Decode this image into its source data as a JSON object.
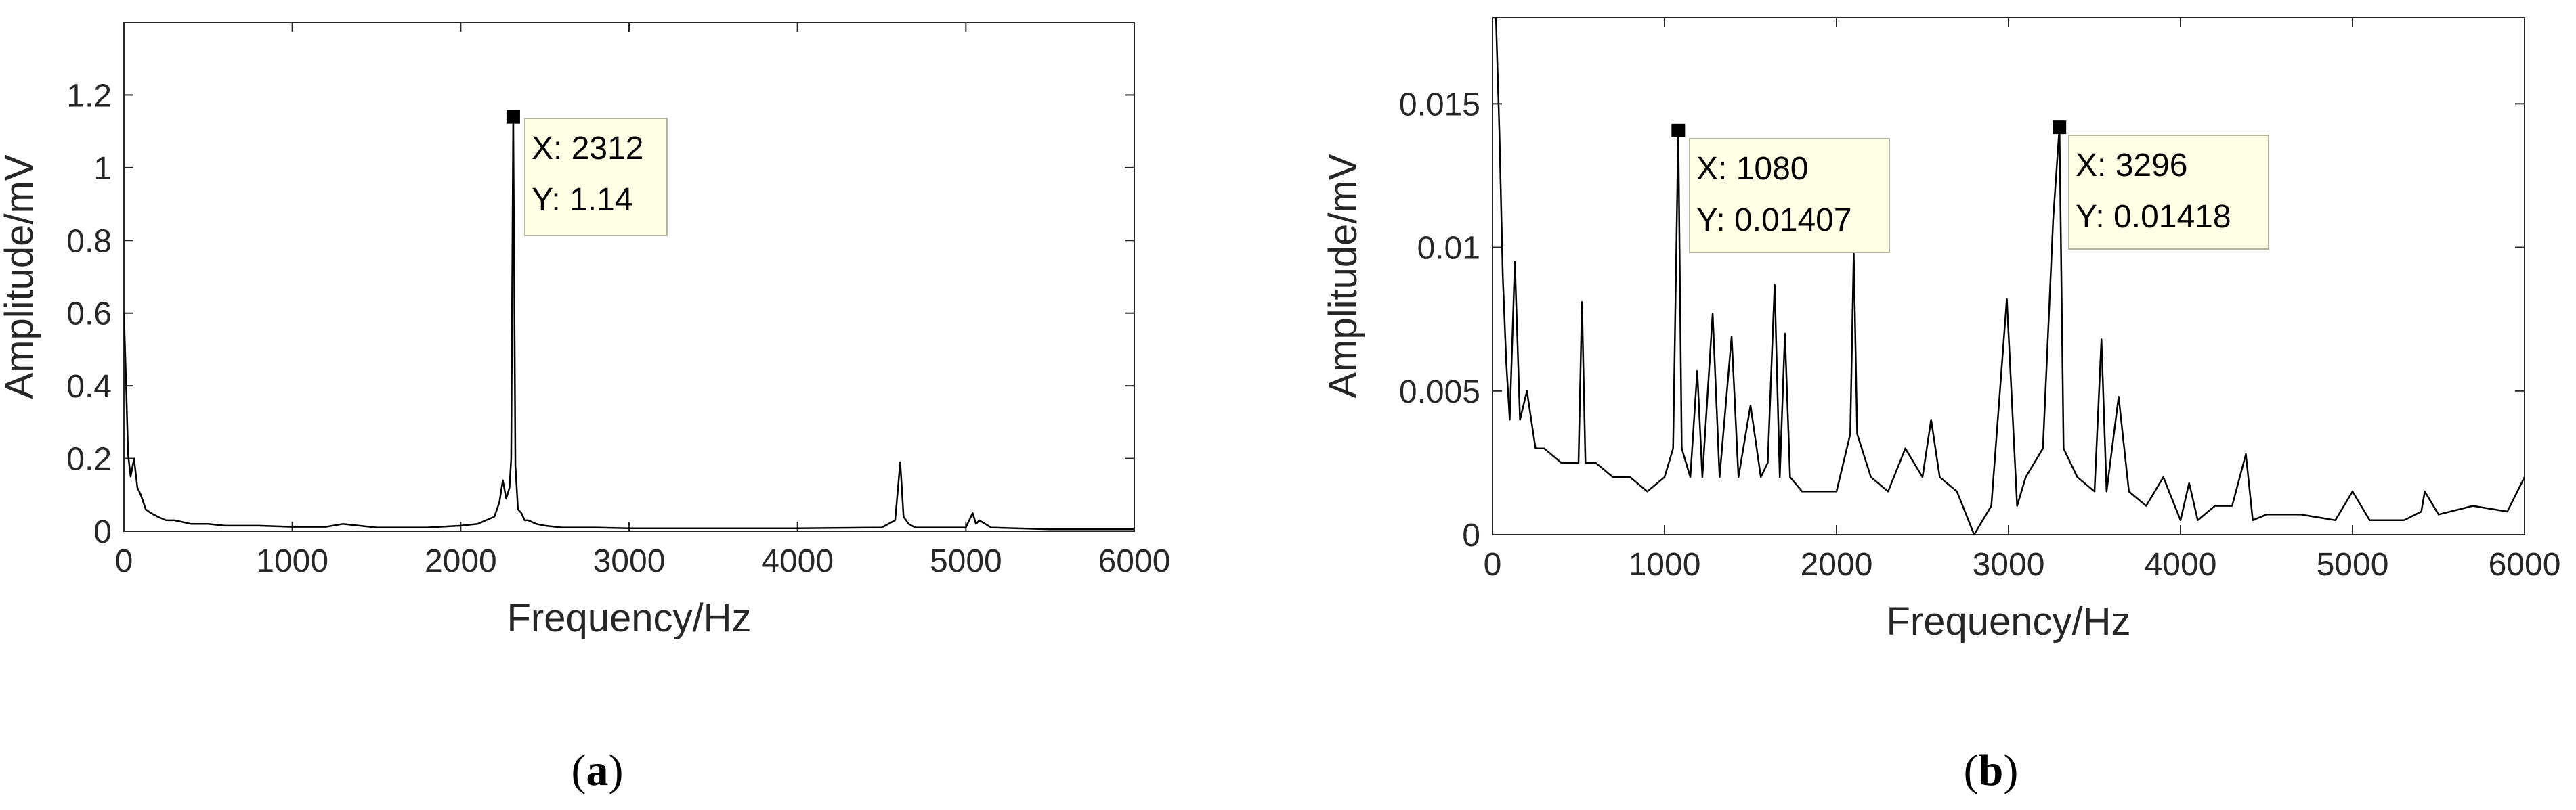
{
  "chart_data": [
    {
      "type": "line",
      "panel_label": "a",
      "xlabel": "Frequency/Hz",
      "ylabel": "Amplitude/mV",
      "xlim": [
        0,
        6000
      ],
      "ylim": [
        0,
        1.4
      ],
      "xticks": [
        0,
        1000,
        2000,
        3000,
        4000,
        5000,
        6000
      ],
      "yticks": [
        0,
        0.2,
        0.4,
        0.6,
        0.8,
        1,
        1.2
      ],
      "ytick_labels": [
        "0",
        "0.2",
        "0.4",
        "0.6",
        "0.8",
        "1",
        "1.2"
      ],
      "grid": false,
      "series": [
        {
          "x": [
            0,
            10,
            25,
            40,
            60,
            80,
            100,
            130,
            160,
            200,
            250,
            300,
            400,
            500,
            600,
            800,
            1000,
            1200,
            1300,
            1500,
            1800,
            2000,
            2100,
            2150,
            2200,
            2230,
            2250,
            2270,
            2290,
            2300,
            2312,
            2325,
            2340,
            2360,
            2380,
            2400,
            2450,
            2500,
            2600,
            2800,
            3000,
            3500,
            4000,
            4500,
            4580,
            4610,
            4630,
            4660,
            4700,
            4800,
            5000,
            5040,
            5060,
            5080,
            5150,
            5500,
            6000
          ],
          "y": [
            0.6,
            0.45,
            0.21,
            0.15,
            0.2,
            0.12,
            0.1,
            0.06,
            0.05,
            0.04,
            0.03,
            0.03,
            0.02,
            0.02,
            0.015,
            0.015,
            0.012,
            0.012,
            0.02,
            0.01,
            0.01,
            0.015,
            0.02,
            0.03,
            0.04,
            0.08,
            0.14,
            0.09,
            0.12,
            0.2,
            1.14,
            0.18,
            0.06,
            0.05,
            0.03,
            0.03,
            0.02,
            0.015,
            0.01,
            0.01,
            0.008,
            0.008,
            0.008,
            0.01,
            0.03,
            0.19,
            0.04,
            0.02,
            0.01,
            0.01,
            0.01,
            0.05,
            0.02,
            0.03,
            0.01,
            0.005,
            0.005
          ]
        }
      ],
      "datatips": [
        {
          "x": 2312,
          "y": 1.14,
          "x_text": "X: 2312",
          "y_text": "Y: 1.14"
        }
      ]
    },
    {
      "type": "line",
      "panel_label": "b",
      "xlabel": "Frequency/Hz",
      "ylabel": "Amplitude/mV",
      "xlim": [
        0,
        6000
      ],
      "ylim": [
        0,
        0.018
      ],
      "xticks": [
        0,
        1000,
        2000,
        3000,
        4000,
        5000,
        6000
      ],
      "yticks": [
        0,
        0.005,
        0.01,
        0.015
      ],
      "ytick_labels": [
        "0",
        "0.005",
        "0.01",
        "0.015"
      ],
      "grid": false,
      "series": [
        {
          "x": [
            0,
            20,
            40,
            60,
            80,
            100,
            130,
            160,
            200,
            250,
            300,
            400,
            500,
            520,
            540,
            600,
            700,
            800,
            900,
            1000,
            1050,
            1080,
            1100,
            1150,
            1190,
            1220,
            1280,
            1320,
            1390,
            1430,
            1500,
            1560,
            1600,
            1640,
            1670,
            1700,
            1730,
            1800,
            1900,
            2000,
            2080,
            2100,
            2120,
            2200,
            2300,
            2400,
            2500,
            2550,
            2600,
            2700,
            2800,
            2900,
            2990,
            3050,
            3100,
            3200,
            3260,
            3296,
            3320,
            3400,
            3500,
            3540,
            3570,
            3640,
            3700,
            3800,
            3900,
            4000,
            4050,
            4100,
            4200,
            4300,
            4380,
            4420,
            4500,
            4700,
            4900,
            5000,
            5100,
            5300,
            5400,
            5420,
            5500,
            5700,
            5900,
            6000
          ],
          "y": [
            0.018,
            0.018,
            0.014,
            0.009,
            0.006,
            0.004,
            0.0095,
            0.004,
            0.005,
            0.003,
            0.003,
            0.0025,
            0.0025,
            0.0081,
            0.0025,
            0.0025,
            0.002,
            0.002,
            0.0015,
            0.002,
            0.003,
            0.01407,
            0.003,
            0.002,
            0.0057,
            0.002,
            0.0077,
            0.002,
            0.0069,
            0.002,
            0.0045,
            0.002,
            0.0025,
            0.0087,
            0.002,
            0.007,
            0.002,
            0.0015,
            0.0015,
            0.0015,
            0.0035,
            0.0098,
            0.0035,
            0.002,
            0.0015,
            0.003,
            0.002,
            0.004,
            0.002,
            0.0015,
            0,
            0.001,
            0.0082,
            0.001,
            0.002,
            0.003,
            0.011,
            0.01418,
            0.003,
            0.002,
            0.0015,
            0.0068,
            0.0015,
            0.0048,
            0.0015,
            0.001,
            0.002,
            0.0005,
            0.0018,
            0.0005,
            0.001,
            0.001,
            0.0028,
            0.0005,
            0.0007,
            0.0007,
            0.0005,
            0.0015,
            0.0005,
            0.0005,
            0.0008,
            0.0015,
            0.0007,
            0.001,
            0.0008,
            0.002
          ]
        }
      ],
      "datatips": [
        {
          "x": 1080,
          "y": 0.01407,
          "x_text": "X: 1080",
          "y_text": "Y: 0.01407"
        },
        {
          "x": 3296,
          "y": 0.01418,
          "x_text": "X: 3296",
          "y_text": "Y: 0.01418"
        }
      ]
    }
  ]
}
